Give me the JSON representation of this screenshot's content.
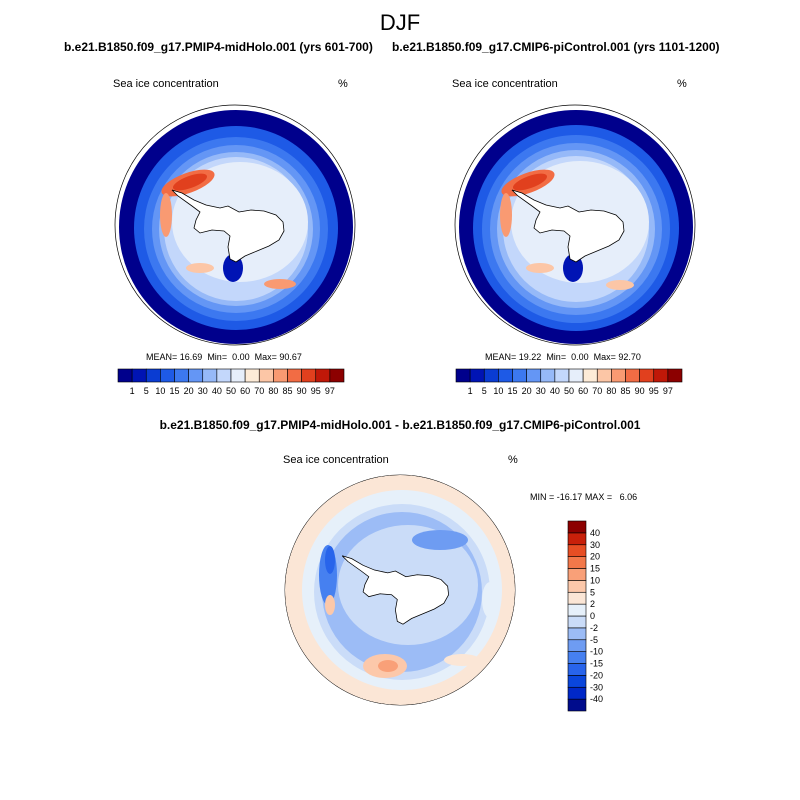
{
  "figure": {
    "title": "DJF"
  },
  "panels": [
    {
      "title": "b.e21.B1850.f09_g17.PMIP4-midHolo.001 (yrs 601-700)",
      "variable": "Sea ice concentration",
      "units": "%",
      "stats": {
        "mean": "16.69",
        "min": "0.00",
        "max": "90.67"
      }
    },
    {
      "title": "b.e21.B1850.f09_g17.CMIP6-piControl.001 (yrs 1101-1200)",
      "variable": "Sea ice concentration",
      "units": "%",
      "stats": {
        "mean": "19.22",
        "min": "0.00",
        "max": "92.70"
      }
    },
    {
      "title": "b.e21.B1850.f09_g17.PMIP4-midHolo.001 - b.e21.B1850.f09_g17.CMIP6-piControl.001",
      "variable": "Sea ice concentration",
      "units": "%",
      "stats": {
        "min": "-16.17",
        "max": "6.06"
      }
    }
  ],
  "chart_data": [
    {
      "type": "heatmap",
      "projection": "south-polar-stereographic",
      "title": "b.e21.B1850.f09_g17.PMIP4-midHolo.001 (yrs 601-700)",
      "field": "Sea ice concentration (%)",
      "season": "DJF",
      "mean": 16.69,
      "min": 0.0,
      "max": 90.67,
      "colorbar": {
        "levels": [
          1,
          5,
          10,
          15,
          20,
          30,
          40,
          50,
          60,
          70,
          80,
          85,
          90,
          95,
          97
        ],
        "colors": [
          "#00008c",
          "#0014b4",
          "#0a3cd2",
          "#1e5ae6",
          "#3c78f0",
          "#6496f5",
          "#96b9f8",
          "#c3d7fb",
          "#e6eefa",
          "#fdebd7",
          "#fcc6a6",
          "#f99a72",
          "#f26c44",
          "#e1401e",
          "#c01808",
          "#8c0000"
        ]
      }
    },
    {
      "type": "heatmap",
      "projection": "south-polar-stereographic",
      "title": "b.e21.B1850.f09_g17.CMIP6-piControl.001 (yrs 1101-1200)",
      "field": "Sea ice concentration (%)",
      "season": "DJF",
      "mean": 19.22,
      "min": 0.0,
      "max": 92.7,
      "colorbar": {
        "levels": [
          1,
          5,
          10,
          15,
          20,
          30,
          40,
          50,
          60,
          70,
          80,
          85,
          90,
          95,
          97
        ],
        "colors": [
          "#00008c",
          "#0014b4",
          "#0a3cd2",
          "#1e5ae6",
          "#3c78f0",
          "#6496f5",
          "#96b9f8",
          "#c3d7fb",
          "#e6eefa",
          "#fdebd7",
          "#fcc6a6",
          "#f99a72",
          "#f26c44",
          "#e1401e",
          "#c01808",
          "#8c0000"
        ]
      }
    },
    {
      "type": "heatmap",
      "projection": "south-polar-stereographic",
      "title": "b.e21.B1850.f09_g17.PMIP4-midHolo.001 - b.e21.B1850.f09_g17.CMIP6-piControl.001",
      "field": "Sea ice concentration difference (%)",
      "season": "DJF",
      "min": -16.17,
      "max": 6.06,
      "colorbar": {
        "levels": [
          -40,
          -30,
          -20,
          -15,
          -10,
          -5,
          -2,
          0,
          2,
          5,
          10,
          15,
          20,
          30,
          40
        ],
        "colors": [
          "#000c8c",
          "#0028c8",
          "#0a46dc",
          "#2864eb",
          "#4680f0",
          "#6e9cf2",
          "#9cbcf6",
          "#cadcf8",
          "#e6f0fa",
          "#fbe6d6",
          "#fcc8aa",
          "#f9a078",
          "#f3784a",
          "#e74e24",
          "#c8200a",
          "#8c0000"
        ]
      }
    }
  ]
}
